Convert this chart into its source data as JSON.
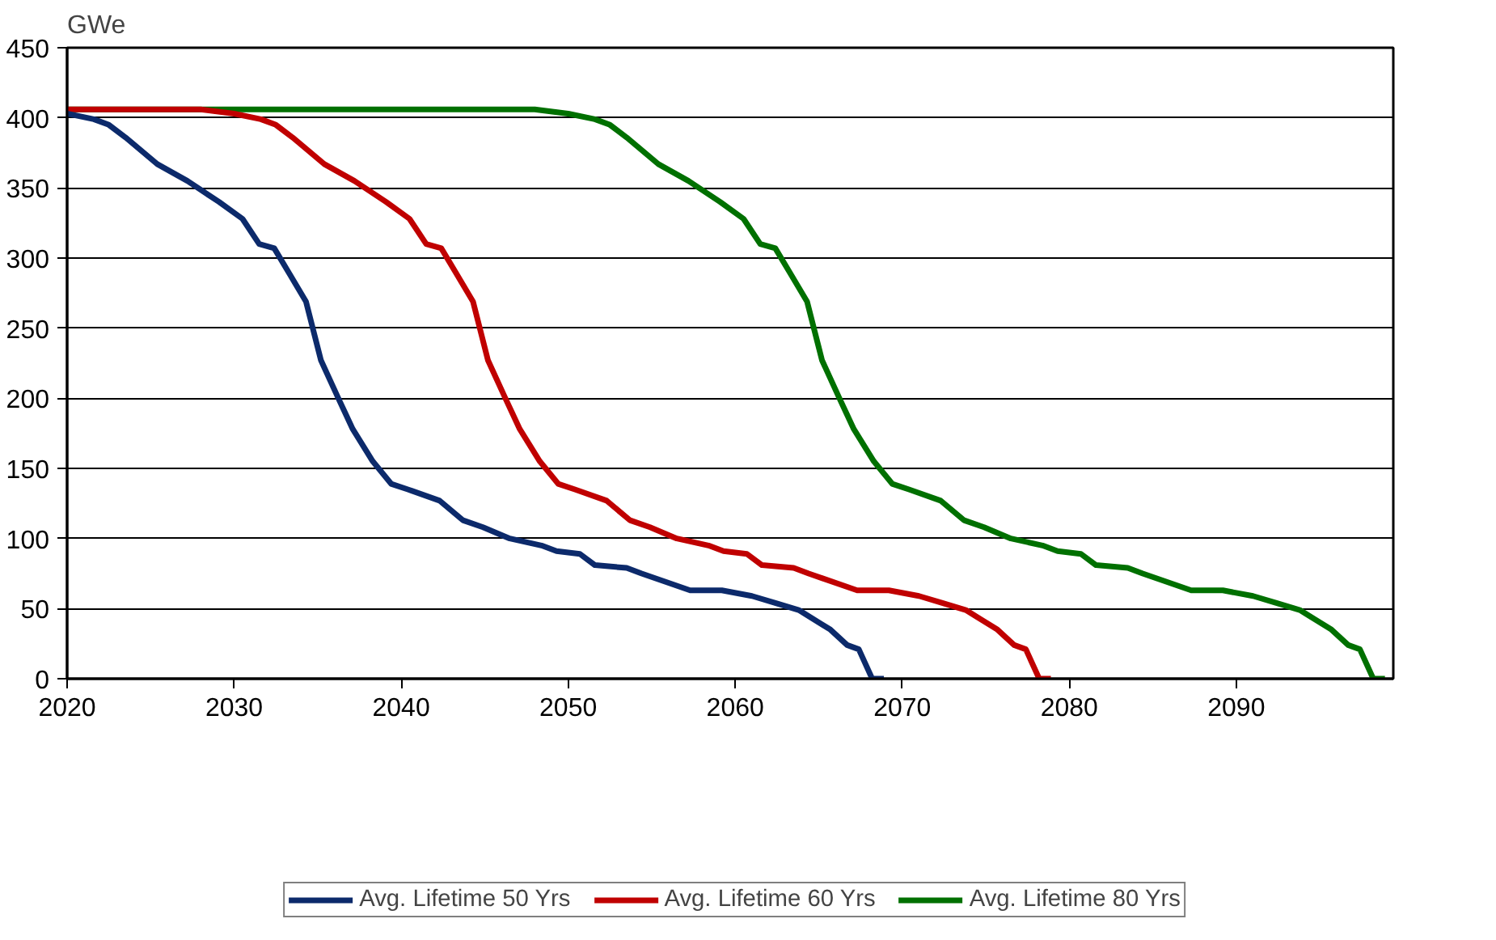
{
  "chart_data": {
    "type": "line",
    "ylabel": "GWe",
    "xlim": [
      2020,
      2099.4
    ],
    "xticks": [
      2020,
      2030,
      2040,
      2050,
      2060,
      2070,
      2080,
      2090
    ],
    "ylim": [
      0,
      450
    ],
    "yticks": [
      0,
      50,
      100,
      150,
      200,
      250,
      300,
      350,
      400,
      450
    ],
    "grid": "y",
    "legend": "bottom",
    "line_style": "solid",
    "marker": "none",
    "series": [
      {
        "name": "Avg. Lifetime 50 Yrs",
        "color": "#0c2a6b",
        "x": [
          2020,
          2021.6,
          2022.5,
          2023.5,
          2025.4,
          2027.2,
          2029.1,
          2030.5,
          2031.5,
          2032.4,
          2033.3,
          2034.3,
          2035.2,
          2036.2,
          2037.1,
          2038.3,
          2039.4,
          2040.4,
          2042.3,
          2043.7,
          2044.9,
          2046.5,
          2048.4,
          2049.3,
          2050.7,
          2051.6,
          2053.5,
          2054.4,
          2057.3,
          2059.2,
          2061.0,
          2062.4,
          2063.8,
          2065.7,
          2066.7,
          2067.4,
          2068.2,
          2068.9
        ],
        "values": [
          403,
          399,
          395,
          386,
          367,
          355,
          340,
          328,
          310,
          307,
          289,
          269,
          227,
          201,
          178,
          155,
          139,
          135,
          127,
          113,
          108,
          100,
          95,
          91,
          89,
          81,
          79,
          75,
          63,
          63,
          59,
          54,
          49,
          35,
          24,
          21,
          0,
          0
        ]
      },
      {
        "name": "Avg. Lifetime 60 Yrs",
        "color": "#c00000",
        "x": [
          2020,
          2028,
          2030,
          2031.6,
          2032.5,
          2033.5,
          2035.4,
          2037.2,
          2039.1,
          2040.5,
          2041.5,
          2042.4,
          2043.3,
          2044.3,
          2045.2,
          2046.2,
          2047.1,
          2048.3,
          2049.4,
          2050.4,
          2052.3,
          2053.7,
          2054.9,
          2056.5,
          2058.4,
          2059.3,
          2060.7,
          2061.6,
          2063.5,
          2064.4,
          2067.3,
          2069.2,
          2071.0,
          2072.4,
          2073.8,
          2075.7,
          2076.7,
          2077.4,
          2078.2,
          2078.9
        ],
        "values": [
          406,
          406,
          403,
          399,
          395,
          386,
          367,
          355,
          340,
          328,
          310,
          307,
          289,
          269,
          227,
          201,
          178,
          155,
          139,
          135,
          127,
          113,
          108,
          100,
          95,
          91,
          89,
          81,
          79,
          75,
          63,
          63,
          59,
          54,
          49,
          35,
          24,
          21,
          0,
          0
        ]
      },
      {
        "name": "Avg. Lifetime 80 Yrs",
        "color": "#007000",
        "x": [
          2020,
          2048,
          2050,
          2051.6,
          2052.5,
          2053.5,
          2055.4,
          2057.2,
          2059.1,
          2060.5,
          2061.5,
          2062.4,
          2063.3,
          2064.3,
          2065.2,
          2066.2,
          2067.1,
          2068.3,
          2069.4,
          2070.4,
          2072.3,
          2073.7,
          2074.9,
          2076.5,
          2078.4,
          2079.3,
          2080.7,
          2081.6,
          2083.5,
          2084.4,
          2087.3,
          2089.2,
          2091.0,
          2092.4,
          2093.8,
          2095.7,
          2096.7,
          2097.4,
          2098.2,
          2098.9
        ],
        "values": [
          406,
          406,
          403,
          399,
          395,
          386,
          367,
          355,
          340,
          328,
          310,
          307,
          289,
          269,
          227,
          201,
          178,
          155,
          139,
          135,
          127,
          113,
          108,
          100,
          95,
          91,
          89,
          81,
          79,
          75,
          63,
          63,
          59,
          54,
          49,
          35,
          24,
          21,
          0,
          0
        ]
      }
    ]
  }
}
